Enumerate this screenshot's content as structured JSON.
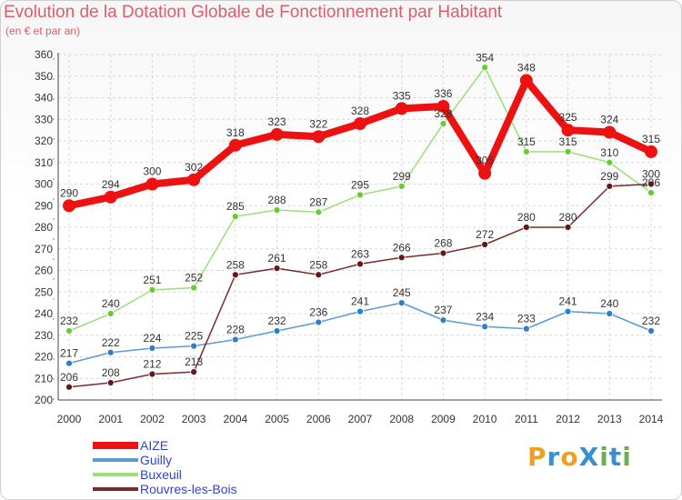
{
  "title": "Evolution de la Dotation Globale de Fonctionnement par Habitant",
  "subtitle": "(en € et par an)",
  "logo": {
    "text": "ProXiti",
    "letters": [
      "P",
      "r",
      "o",
      "X",
      "i",
      "t",
      "i"
    ],
    "colors": [
      "#f0a020",
      "#3a8fd0",
      "#f0a020",
      "#3a8fd0",
      "#6ab04c",
      "#3a8fd0",
      "#6ab04c"
    ]
  },
  "chart_data": {
    "type": "line",
    "title": "Evolution de la Dotation Globale de Fonctionnement par Habitant",
    "subtitle": "(en € et par an)",
    "xlabel": "",
    "ylabel": "",
    "x": [
      "2000",
      "2001",
      "2002",
      "2003",
      "2004",
      "2005",
      "2006",
      "2007",
      "2008",
      "2009",
      "2010",
      "2011",
      "2012",
      "2013",
      "2014"
    ],
    "ylim": [
      200,
      360
    ],
    "yticks": [
      200,
      210,
      220,
      230,
      240,
      250,
      260,
      270,
      280,
      290,
      300,
      310,
      320,
      330,
      340,
      350,
      360
    ],
    "grid": true,
    "legend_position": "bottom-left",
    "series": [
      {
        "name": "AIZE",
        "color": "#ee1111",
        "dot": "#ee1111",
        "emphasis": true,
        "values": [
          290,
          294,
          300,
          302,
          318,
          323,
          322,
          328,
          335,
          336,
          305,
          348,
          325,
          324,
          315
        ]
      },
      {
        "name": "Guilly",
        "color": "#5b9bd5",
        "dot": "#2f7fc8",
        "values": [
          217,
          222,
          224,
          225,
          228,
          232,
          236,
          241,
          245,
          237,
          234,
          233,
          241,
          240,
          232
        ]
      },
      {
        "name": "Buxeuil",
        "color": "#99e07a",
        "dot": "#66cc33",
        "values": [
          232,
          240,
          251,
          252,
          285,
          288,
          287,
          295,
          299,
          328,
          354,
          315,
          315,
          310,
          296
        ]
      },
      {
        "name": "Rouvres-les-Bois",
        "color": "#7a2a2a",
        "dot": "#661818",
        "values": [
          206,
          208,
          212,
          213,
          258,
          261,
          258,
          263,
          266,
          268,
          272,
          280,
          280,
          299,
          300
        ]
      }
    ]
  }
}
